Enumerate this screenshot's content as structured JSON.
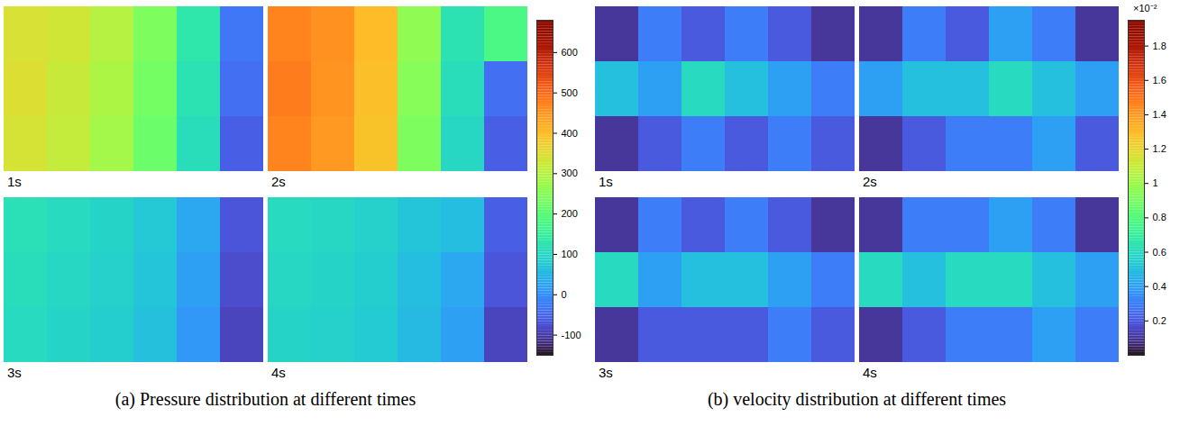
{
  "chart_data": [
    {
      "type": "heatmap",
      "title": "(a) Pressure distribution at different times",
      "color": "turbo",
      "tick_labels": false,
      "colorbar": {
        "range": [
          -150,
          680
        ],
        "ticks": [
          -100,
          0,
          100,
          200,
          300,
          400,
          500,
          600
        ]
      },
      "panels": [
        {
          "label": "1s",
          "cells": [
            [
              340,
              330,
              300,
              240,
              130,
              -30
            ],
            [
              345,
              320,
              290,
              230,
              120,
              -40
            ],
            [
              335,
              315,
              280,
              220,
              110,
              -60
            ]
          ]
        },
        {
          "label": "2s",
          "cells": [
            [
              470,
              455,
              400,
              260,
              120,
              180
            ],
            [
              480,
              450,
              395,
              250,
              110,
              -40
            ],
            [
              470,
              445,
              390,
              240,
              100,
              -60
            ]
          ]
        },
        {
          "label": "3s",
          "cells": [
            [
              115,
              105,
              95,
              75,
              30,
              -70
            ],
            [
              110,
              100,
              90,
              70,
              20,
              -80
            ],
            [
              105,
              95,
              85,
              65,
              10,
              -90
            ]
          ]
        },
        {
          "label": "4s",
          "cells": [
            [
              105,
              100,
              90,
              70,
              60,
              -60
            ],
            [
              100,
              95,
              85,
              60,
              30,
              -70
            ],
            [
              95,
              90,
              80,
              55,
              20,
              -90
            ]
          ]
        }
      ]
    },
    {
      "type": "heatmap",
      "title": "(b) velocity distribution at different times",
      "color": "turbo",
      "tick_labels": false,
      "colorbar": {
        "range": [
          0,
          1.95
        ],
        "ticks": [
          0.2,
          0.4,
          0.6,
          0.8,
          1,
          1.2,
          1.4,
          1.6,
          1.8
        ],
        "label": "×10⁻²"
      },
      "panels": [
        {
          "label": "1s",
          "cells": [
            [
              0.1,
              0.3,
              0.2,
              0.3,
              0.2,
              0.1
            ],
            [
              0.5,
              0.4,
              0.6,
              0.5,
              0.4,
              0.3
            ],
            [
              0.1,
              0.2,
              0.3,
              0.2,
              0.3,
              0.2
            ]
          ]
        },
        {
          "label": "2s",
          "cells": [
            [
              0.1,
              0.3,
              0.2,
              0.4,
              0.3,
              0.1
            ],
            [
              0.4,
              0.5,
              0.5,
              0.6,
              0.5,
              0.4
            ],
            [
              0.1,
              0.2,
              0.3,
              0.3,
              0.4,
              0.2
            ]
          ]
        },
        {
          "label": "3s",
          "cells": [
            [
              0.1,
              0.3,
              0.2,
              0.3,
              0.2,
              0.1
            ],
            [
              0.6,
              0.4,
              0.5,
              0.5,
              0.4,
              0.3
            ],
            [
              0.1,
              0.2,
              0.2,
              0.2,
              0.3,
              0.2
            ]
          ]
        },
        {
          "label": "4s",
          "cells": [
            [
              0.1,
              0.3,
              0.3,
              0.4,
              0.3,
              0.1
            ],
            [
              0.6,
              0.5,
              0.6,
              0.6,
              0.5,
              0.4
            ],
            [
              0.1,
              0.2,
              0.3,
              0.3,
              0.4,
              0.3
            ]
          ]
        }
      ]
    }
  ]
}
